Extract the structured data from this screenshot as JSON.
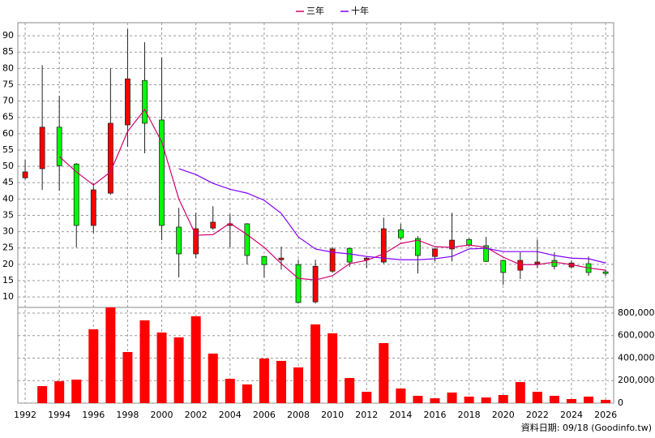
{
  "chart_data": [
    {
      "type": "candlestick",
      "legend": "top",
      "x": [
        1992,
        1993,
        1994,
        1995,
        1996,
        1997,
        1998,
        1999,
        2000,
        2001,
        2002,
        2003,
        2004,
        2005,
        2006,
        2007,
        2008,
        2009,
        2010,
        2011,
        2012,
        2013,
        2014,
        2015,
        2016,
        2017,
        2018,
        2019,
        2020,
        2021,
        2022,
        2023,
        2024,
        2025,
        2026
      ],
      "open": [
        46.5,
        49.3,
        62,
        50.7,
        31.9,
        41.8,
        62.7,
        76.3,
        64.2,
        31.4,
        23.2,
        31.1,
        31.9,
        32.4,
        22.4,
        21.4,
        19.9,
        8.5,
        17.9,
        24.9,
        21.4,
        20.7,
        30.6,
        27.9,
        22.4,
        24.7,
        27.6,
        25.7,
        21.2,
        18.2,
        20.2,
        21.2,
        19.2,
        20.2,
        17.7
      ],
      "high": [
        52,
        81,
        71.6,
        51,
        44.8,
        80,
        92,
        88,
        83.3,
        37.3,
        35.8,
        37.8,
        35.3,
        32.6,
        22.6,
        25.4,
        21.4,
        21.4,
        25.2,
        25.1,
        22.4,
        34.3,
        32.4,
        28.6,
        24.9,
        35.8,
        27.9,
        28.4,
        21.4,
        23.7,
        27.6,
        23.7,
        21.2,
        22.4,
        18.4
      ],
      "low": [
        46,
        42.8,
        42.5,
        25.2,
        29.6,
        41.3,
        56,
        54,
        27.4,
        16,
        21.9,
        30.6,
        25.2,
        20,
        16,
        18.4,
        8,
        8,
        17.5,
        19.2,
        18.9,
        20.2,
        27.4,
        17.2,
        20.9,
        20.9,
        25.4,
        20.7,
        13.7,
        15.5,
        18.9,
        18.4,
        18.7,
        16.5,
        16.5
      ],
      "close": [
        48.3,
        62,
        50.2,
        31.9,
        42.8,
        63.2,
        76.8,
        63.2,
        31.9,
        23.2,
        30.9,
        32.9,
        32.4,
        22.7,
        19.9,
        21.9,
        8.3,
        19.4,
        24.7,
        20.7,
        21.9,
        30.9,
        28.1,
        22.7,
        24.7,
        27.4,
        25.9,
        20.9,
        17.5,
        21.2,
        20.7,
        19.4,
        20.4,
        17.5,
        17.2
      ],
      "up_color": "#ff0000",
      "down_color": "#00ff00",
      "series": [
        {
          "name": "三年",
          "color": "#d0006f",
          "values": [
            null,
            null,
            53,
            48.3,
            44.3,
            48.3,
            60.7,
            67.4,
            57.5,
            40,
            28.9,
            29.1,
            32.6,
            29.1,
            25.2,
            20.2,
            15.7,
            15.2,
            16.5,
            20.2,
            21.2,
            23.2,
            26.4,
            27.4,
            25.4,
            25.2,
            25.9,
            25.2,
            22.2,
            19.9,
            19.9,
            20.7,
            19.9,
            18.9,
            18.2
          ]
        },
        {
          "name": "十年",
          "color": "#8000ff",
          "values": [
            null,
            null,
            null,
            null,
            null,
            null,
            null,
            null,
            null,
            49.3,
            47.5,
            44.8,
            43,
            41.8,
            39.6,
            35.6,
            28.4,
            24.7,
            23.7,
            23.2,
            22.4,
            21.9,
            21.4,
            21.4,
            21.7,
            22.4,
            24.7,
            24.9,
            23.9,
            23.9,
            23.9,
            22.7,
            21.9,
            21.7,
            20.4
          ]
        }
      ],
      "xlim": [
        1991.57,
        2026.47
      ],
      "xticks": [
        1992,
        1994,
        1996,
        1998,
        2000,
        2002,
        2004,
        2006,
        2008,
        2010,
        2012,
        2014,
        2016,
        2018,
        2020,
        2022,
        2024,
        2026
      ],
      "ylim": [
        6.8,
        94
      ],
      "yticks": [
        10,
        15,
        20,
        25,
        30,
        35,
        40,
        45,
        50,
        55,
        60,
        65,
        70,
        75,
        80,
        85,
        90
      ],
      "grid": true
    },
    {
      "type": "bar",
      "x": [
        1992,
        1993,
        1994,
        1995,
        1996,
        1997,
        1998,
        1999,
        2000,
        2001,
        2002,
        2003,
        2004,
        2005,
        2006,
        2007,
        2008,
        2009,
        2010,
        2011,
        2012,
        2013,
        2014,
        2015,
        2016,
        2017,
        2018,
        2019,
        2020,
        2021,
        2022,
        2023,
        2024,
        2025,
        2026
      ],
      "values": [
        null,
        151000,
        195000,
        209000,
        656000,
        850000,
        454000,
        735000,
        627000,
        584000,
        771000,
        440000,
        216000,
        166000,
        396000,
        375000,
        317000,
        699000,
        620000,
        223000,
        101000,
        533000,
        130000,
        65000,
        43000,
        94000,
        58000,
        50000,
        72000,
        187000,
        101000,
        65000,
        36000,
        58000,
        29000
      ],
      "color": "#ff0000",
      "ylim": [
        0,
        850000
      ],
      "yticks": [
        0,
        {
          "value": 200000,
          "label": "200,000"
        },
        {
          "value": 400000,
          "label": "400,000"
        },
        {
          "value": 600000,
          "label": "600,000"
        },
        {
          "value": 800000,
          "label": "800,000"
        }
      ],
      "grid": true
    }
  ],
  "footer": "資料日期: 09/18  (Goodinfo.tw)"
}
